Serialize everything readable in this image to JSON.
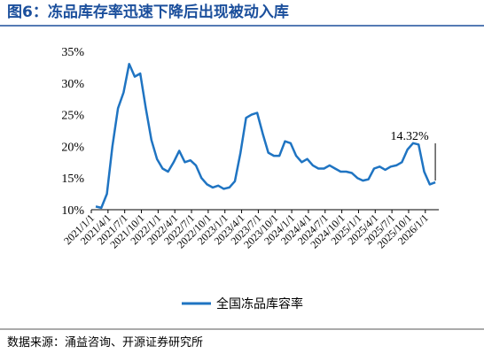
{
  "chart_data": {
    "type": "line",
    "title": "图6：冻品库存率迅速下降后出现被动入库",
    "source": "数据来源：涌益咨询、开源证券研究所",
    "annotation": "14.32%",
    "categories": [
      "2021/1/1",
      null,
      null,
      "2021/4/1",
      null,
      null,
      "2021/7/1",
      null,
      null,
      "2021/10/1",
      null,
      null,
      "2022/1/1",
      null,
      null,
      "2022/4/1",
      null,
      null,
      "2022/7/1",
      null,
      null,
      "2022/10/1",
      null,
      null,
      "2023/1/1",
      null,
      null,
      "2023/4/1",
      null,
      null,
      "2023/7/1",
      null,
      null,
      "2023/10/1",
      null,
      null,
      "2024/1/1",
      null,
      null,
      "2024/4/1",
      null,
      null,
      "2024/7/1",
      null,
      null,
      "2024/10/1",
      null,
      null,
      "2025/1/1",
      null,
      null,
      "2025/4/1",
      null,
      null,
      "2025/7/1",
      null,
      null,
      "2025/10/1",
      null,
      null,
      "2026/1/1",
      null
    ],
    "series": [
      {
        "name": "全国冻品库容率",
        "color": "#1f74c2",
        "values": [
          10.5,
          10.3,
          12.5,
          20,
          26,
          28.5,
          33,
          31,
          31.5,
          26,
          21,
          18,
          16.5,
          16,
          17.5,
          19.3,
          17.5,
          17.8,
          17,
          15,
          14,
          13.5,
          13.8,
          13.3,
          13.5,
          14.5,
          19,
          24.5,
          25,
          25.3,
          22,
          19,
          18.5,
          18.5,
          20.8,
          20.5,
          18.5,
          17.5,
          18,
          17,
          16.5,
          16.5,
          17,
          16.5,
          16,
          16,
          15.8,
          15,
          14.6,
          14.8,
          16.5,
          16.8,
          16.3,
          16.8,
          17,
          17.5,
          19.5,
          20.5,
          20.3,
          16,
          14,
          14.32
        ]
      }
    ],
    "ylim": [
      10,
      35
    ],
    "yticks": [
      {
        "value": 10,
        "label": "10%"
      },
      {
        "value": 15,
        "label": "15%"
      },
      {
        "value": 20,
        "label": "20%"
      },
      {
        "value": 25,
        "label": "25%"
      },
      {
        "value": 30,
        "label": "30%"
      },
      {
        "value": 35,
        "label": "35%"
      }
    ]
  }
}
